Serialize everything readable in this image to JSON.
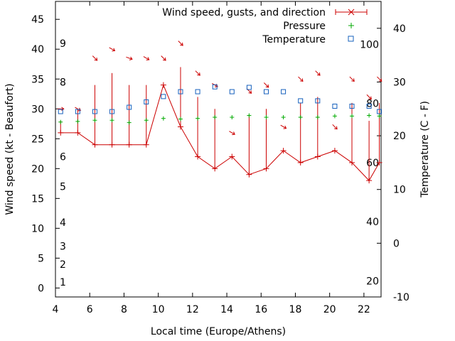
{
  "chart_data": {
    "type": "line",
    "xlabel": "Local time (Europe/Athens)",
    "ylabel": "Wind speed (kt - Beaufort)",
    "y2label": "Temperature (C - F)",
    "xlim": [
      4,
      23
    ],
    "ylim": [
      -1.5,
      48
    ],
    "y2lim": [
      -10,
      45
    ],
    "x_ticks": [
      4,
      6,
      8,
      10,
      12,
      14,
      16,
      18,
      20,
      22
    ],
    "y_ticks": [
      0,
      5,
      10,
      15,
      20,
      25,
      30,
      35,
      40,
      45
    ],
    "y2_ticks": [
      -10,
      0,
      10,
      20,
      30,
      40
    ],
    "beaufort_labels": [
      {
        "label": "1",
        "y": 1
      },
      {
        "label": "2",
        "y": 4
      },
      {
        "label": "3",
        "y": 7
      },
      {
        "label": "4",
        "y": 11
      },
      {
        "label": "5",
        "y": 17
      },
      {
        "label": "6",
        "y": 22
      },
      {
        "label": "8",
        "y": 34.5
      },
      {
        "label": "9",
        "y": 41
      }
    ],
    "fahrenheit_labels": [
      {
        "label": "20",
        "y2": -7
      },
      {
        "label": "40",
        "y2": 4
      },
      {
        "label": "60",
        "y2": 15
      },
      {
        "label": "80",
        "y2": 26
      },
      {
        "label": "100",
        "y2": 37
      }
    ],
    "legend": {
      "position": "top-right",
      "wind": "Wind speed, gusts, and direction",
      "pressure": "Pressure",
      "temperature": "Temperature"
    },
    "series": [
      {
        "name": "Wind speed",
        "x": [
          4.3,
          5.3,
          6.3,
          7.3,
          8.3,
          9.3,
          10.3,
          11.3,
          12.3,
          13.3,
          14.3,
          15.3,
          16.3,
          17.3,
          18.3,
          19.3,
          20.3,
          21.3,
          22.3,
          22.9
        ],
        "values": [
          26,
          26,
          24,
          24,
          24,
          24,
          34,
          27,
          22,
          20,
          22,
          19,
          20,
          23,
          21,
          22,
          23,
          21,
          18,
          21
        ]
      },
      {
        "name": "Gusts",
        "x": [
          4.3,
          5.3,
          6.3,
          7.3,
          8.3,
          9.3,
          10.3,
          11.3,
          12.3,
          13.3,
          14.3,
          15.3,
          16.3,
          17.3,
          18.3,
          19.3,
          20.3,
          21.3,
          22.3,
          22.9
        ],
        "values": [
          28,
          30,
          34,
          36,
          34,
          34,
          34,
          37,
          32,
          30,
          22,
          29,
          30,
          23,
          31,
          32,
          23,
          31,
          28,
          31
        ]
      },
      {
        "name": "Wind direction",
        "x": [
          4.3,
          5.3,
          6.3,
          7.3,
          8.3,
          9.3,
          10.3,
          11.3,
          12.3,
          13.3,
          14.3,
          15.3,
          16.3,
          17.3,
          18.3,
          19.3,
          20.3,
          21.3,
          22.3,
          22.9
        ],
        "arrow_y": [
          30,
          30,
          38.5,
          40,
          38.5,
          38.5,
          38.5,
          41,
          36,
          34,
          26,
          33,
          34,
          27,
          35,
          36,
          27,
          35,
          32,
          35
        ],
        "from_deg": [
          270,
          300,
          315,
          300,
          290,
          300,
          315,
          315,
          315,
          300,
          300,
          315,
          315,
          300,
          315,
          315,
          315,
          315,
          315,
          315
        ]
      },
      {
        "name": "Pressure",
        "x": [
          4.3,
          5.3,
          6.3,
          7.3,
          8.3,
          9.3,
          10.3,
          11.3,
          12.3,
          13.3,
          14.3,
          15.3,
          16.3,
          17.3,
          18.3,
          19.3,
          20.3,
          21.3,
          22.3,
          22.9
        ],
        "values": [
          27.8,
          27.9,
          28.1,
          28.1,
          27.7,
          28.1,
          28.4,
          28.3,
          28.4,
          28.6,
          28.6,
          28.9,
          28.6,
          28.6,
          28.6,
          28.6,
          28.8,
          28.8,
          28.9,
          28.8
        ]
      },
      {
        "name": "Temperature",
        "x": [
          4.3,
          5.3,
          6.3,
          7.3,
          8.3,
          9.3,
          10.3,
          11.3,
          12.3,
          13.3,
          14.3,
          15.3,
          16.3,
          17.3,
          18.3,
          19.3,
          20.3,
          21.3,
          22.3,
          22.9
        ],
        "values": [
          24.5,
          24.5,
          24.5,
          24.5,
          25.3,
          26.3,
          27.3,
          28.2,
          28.2,
          29.1,
          28.2,
          29.0,
          28.2,
          28.2,
          26.5,
          26.5,
          25.5,
          25.5,
          25.5,
          24.5
        ]
      }
    ]
  }
}
